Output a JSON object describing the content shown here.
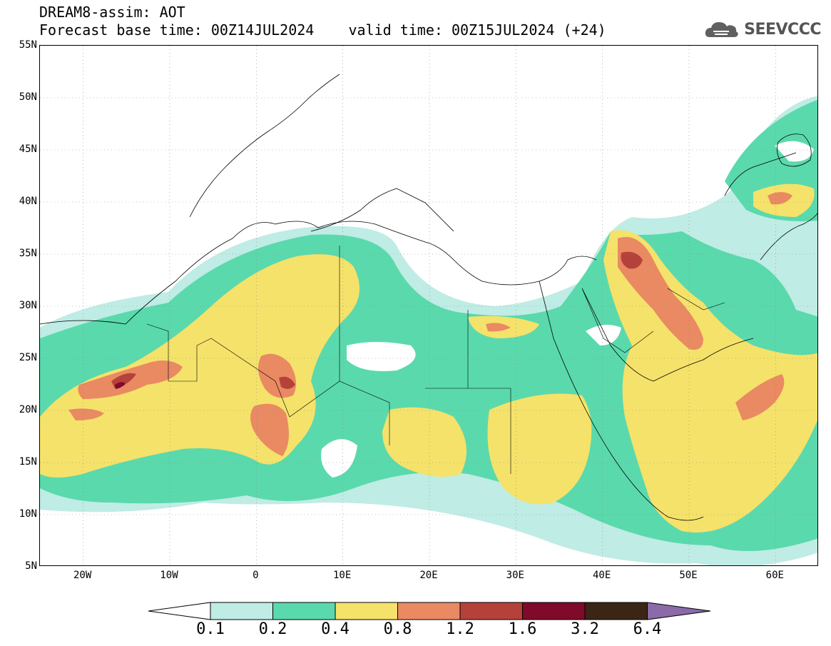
{
  "header": {
    "line1": "DREAM8-assim: AOT",
    "line2": "Forecast base time: 00Z14JUL2024    valid time: 00Z15JUL2024 (+24)",
    "logo_text": "SEEVCCC",
    "logo_icon": "cloud-icon"
  },
  "map": {
    "variable": "AOT",
    "projection": "lat-lon",
    "lon_range": [
      -25,
      65
    ],
    "lat_range": [
      5,
      55
    ],
    "grid_lines": "dotted",
    "lat_labels": [
      "55N",
      "50N",
      "45N",
      "40N",
      "35N",
      "30N",
      "25N",
      "20N",
      "15N",
      "10N",
      "5N"
    ],
    "lon_labels": [
      "20W",
      "10W",
      "0",
      "10E",
      "20E",
      "30E",
      "40E",
      "50E",
      "60E"
    ]
  },
  "colorbar": {
    "labels": [
      "0.1",
      "0.2",
      "0.4",
      "0.8",
      "1.2",
      "1.6",
      "3.2",
      "6.4"
    ],
    "colors": [
      "#ffffff",
      "#bfece4",
      "#5ad9ad",
      "#f5e26a",
      "#e98a63",
      "#b5423a",
      "#7f0a2a",
      "#3b2616",
      "#8a6aa8"
    ]
  }
}
